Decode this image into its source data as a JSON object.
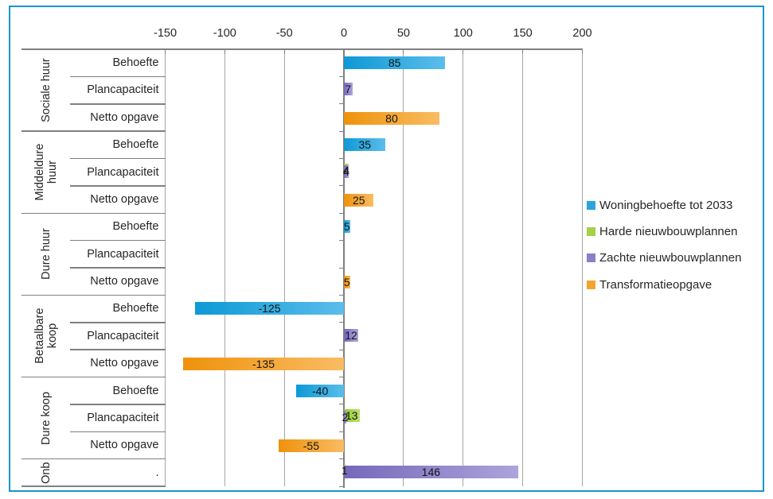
{
  "frame": {
    "border_color": "#1697CE"
  },
  "colors": {
    "text": "#262626",
    "gridline": "#A6A6A6",
    "axis": "#808080",
    "panel_line": "#808080",
    "data_label": "#141414"
  },
  "chart_data": {
    "type": "bar",
    "orientation": "horizontal",
    "title": "",
    "value_axis": {
      "position": "top",
      "min": -150,
      "max": 200,
      "step": 50,
      "ticks": [
        -150,
        -100,
        -50,
        0,
        50,
        100,
        150,
        200
      ],
      "gridlines": true
    },
    "series": [
      {
        "name": "Woningbehoefte tot 2033",
        "color": "#2AA4DD",
        "gradient": [
          "#0D99D6",
          "#5BBDEA"
        ]
      },
      {
        "name": "Harde nieuwbouwplannen",
        "color": "#A3D245",
        "gradient": [
          "#95CA2E",
          "#B8E06C"
        ]
      },
      {
        "name": "Zachte nieuwbouwplannen",
        "color": "#8C7EC6",
        "gradient": [
          "#7668BA",
          "#ACA4DC"
        ]
      },
      {
        "name": "Transformatieopgave",
        "color": "#F4A52F",
        "gradient": [
          "#EF920B",
          "#F9BC63"
        ]
      }
    ],
    "legend": {
      "position": "right",
      "items": [
        "Woningbehoefte tot 2033",
        "Harde nieuwbouwplannen",
        "Zachte nieuwbouwplannen",
        "Transformatieopgave"
      ]
    },
    "groups": [
      {
        "label": "Sociale huur",
        "label_lines": [
          "Sociale huur"
        ],
        "rows": [
          {
            "label": "Behoefte",
            "bars": [
              {
                "series": 0,
                "value": 85,
                "label": "85"
              }
            ]
          },
          {
            "label": "Plancapaciteit",
            "bars": [
              {
                "series": 2,
                "value": 7,
                "label": "7"
              }
            ]
          },
          {
            "label": "Netto opgave",
            "bars": [
              {
                "series": 3,
                "value": 80,
                "label": "80"
              }
            ]
          }
        ]
      },
      {
        "label": "Middeldure huur",
        "label_lines": [
          "Middeldure",
          "huur"
        ],
        "rows": [
          {
            "label": "Behoefte",
            "bars": [
              {
                "series": 0,
                "value": 35,
                "label": "35"
              }
            ]
          },
          {
            "label": "Plancapaciteit",
            "bars": [
              {
                "series": 1,
                "value": 4,
                "label": "4"
              },
              {
                "series": 2,
                "value": 4,
                "label": "4"
              }
            ]
          },
          {
            "label": "Netto opgave",
            "bars": [
              {
                "series": 3,
                "value": 25,
                "label": "25"
              }
            ]
          }
        ]
      },
      {
        "label": "Dure huur",
        "label_lines": [
          "Dure huur"
        ],
        "rows": [
          {
            "label": "Behoefte",
            "bars": [
              {
                "series": 0,
                "value": 5,
                "label": "5"
              }
            ]
          },
          {
            "label": "Plancapaciteit",
            "bars": []
          },
          {
            "label": "Netto opgave",
            "bars": [
              {
                "series": 3,
                "value": 5,
                "label": "5"
              }
            ]
          }
        ]
      },
      {
        "label": "Betaalbare koop",
        "label_lines": [
          "Betaalbare",
          "koop"
        ],
        "rows": [
          {
            "label": "Behoefte",
            "bars": [
              {
                "series": 0,
                "value": -125,
                "label": "-125"
              }
            ]
          },
          {
            "label": "Plancapaciteit",
            "bars": [
              {
                "series": 2,
                "value": 12,
                "label": "12"
              }
            ]
          },
          {
            "label": "Netto opgave",
            "bars": [
              {
                "series": 3,
                "value": -135,
                "label": "-135"
              }
            ]
          }
        ]
      },
      {
        "label": "Dure koop",
        "label_lines": [
          "Dure koop"
        ],
        "rows": [
          {
            "label": "Behoefte",
            "bars": [
              {
                "series": 0,
                "value": -40,
                "label": "-40"
              }
            ]
          },
          {
            "label": "Plancapaciteit",
            "bars": [
              {
                "series": 1,
                "value": 13,
                "label": "13"
              },
              {
                "series": 2,
                "value": 2,
                "label": "2"
              }
            ]
          },
          {
            "label": "Netto opgave",
            "bars": [
              {
                "series": 3,
                "value": -55,
                "label": "-55"
              }
            ]
          }
        ]
      },
      {
        "label": "Onb",
        "label_lines": [
          "Onb"
        ],
        "rows": [
          {
            "label": ".",
            "bars": [
              {
                "series": 1,
                "value": 1,
                "label": "1"
              },
              {
                "series": 2,
                "value": 146,
                "label": "146"
              }
            ]
          }
        ]
      }
    ]
  }
}
